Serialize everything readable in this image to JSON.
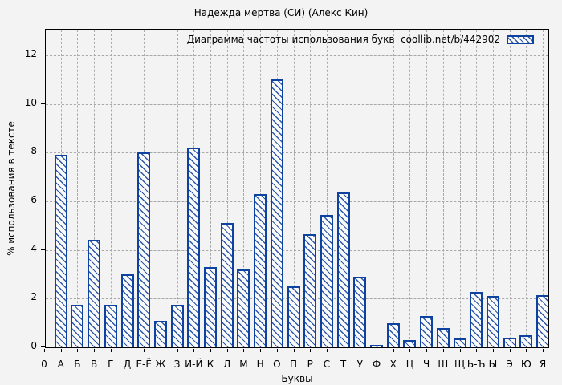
{
  "chart_data": {
    "type": "bar",
    "title": "Надежда мертва (СИ) (Алекс Кин)",
    "legend_entry": "Диаграмма частоты использования букв  coollib.net/b/442902",
    "legend_position": "top-right-inside",
    "xlabel": "Буквы",
    "ylabel": "% использования в тексте",
    "x_origin_label": "0",
    "categories": [
      "А",
      "Б",
      "В",
      "Г",
      "Д",
      "Е-Ё",
      "Ж",
      "З",
      "И-Й",
      "К",
      "Л",
      "М",
      "Н",
      "О",
      "П",
      "Р",
      "С",
      "Т",
      "У",
      "Ф",
      "Х",
      "Ц",
      "Ч",
      "Ш",
      "Щ",
      "Ь-Ъ",
      "Ы",
      "Э",
      "Ю",
      "Я"
    ],
    "values": [
      7.9,
      1.75,
      4.4,
      1.75,
      3.0,
      8.0,
      1.1,
      1.75,
      8.2,
      3.3,
      5.1,
      3.2,
      6.3,
      11.0,
      2.5,
      4.65,
      5.45,
      6.35,
      2.9,
      0.1,
      1.0,
      0.3,
      1.3,
      0.8,
      0.37,
      2.27,
      2.1,
      0.38,
      0.5,
      2.15
    ],
    "y_ticks": [
      0,
      2,
      4,
      6,
      8,
      10,
      12
    ],
    "ylim": [
      0,
      13.05
    ],
    "grid": true,
    "bar_style": "hatched"
  },
  "colors": {
    "bar_border": "#0d42a0",
    "bar_hatch": "#2d57a8",
    "bar_fill": "#fafafa",
    "plot_background": "#f3f3f3",
    "grid": "#a8a8a8",
    "frame": "#000000",
    "text": "#000000"
  }
}
